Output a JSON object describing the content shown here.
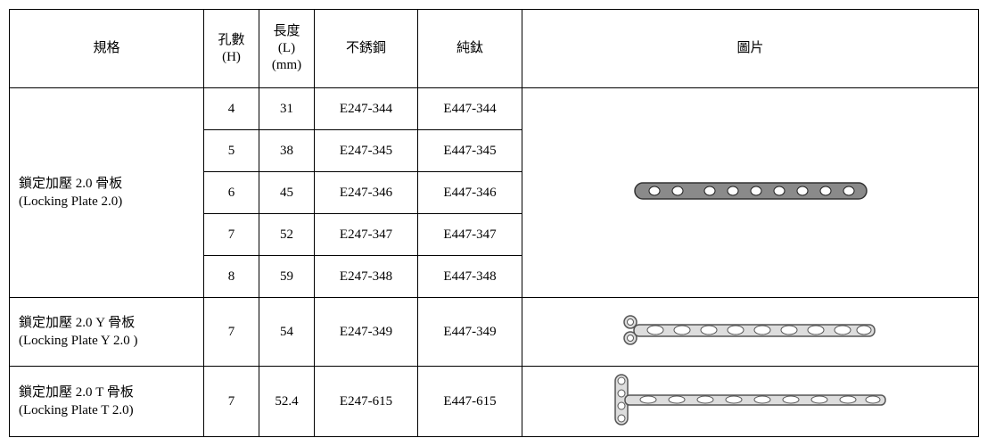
{
  "table": {
    "headers": [
      [
        "規格"
      ],
      [
        "孔數",
        "(H)"
      ],
      [
        "長度",
        "(L)",
        "(mm)"
      ],
      [
        "不銹鋼"
      ],
      [
        "純鈦"
      ],
      [
        "圖片"
      ]
    ],
    "groups": [
      {
        "spec": [
          "鎖定加壓 2.0 骨板",
          "(Locking Plate 2.0)"
        ],
        "rows": [
          [
            4,
            31,
            "E247-344",
            "E447-344"
          ],
          [
            5,
            38,
            "E247-345",
            "E447-345"
          ],
          [
            6,
            45,
            "E247-346",
            "E447-346"
          ],
          [
            7,
            52,
            "E247-347",
            "E447-347"
          ],
          [
            8,
            59,
            "E247-348",
            "E447-348"
          ]
        ]
      },
      {
        "spec": [
          "鎖定加壓 2.0 Y 骨板",
          "(Locking Plate Y 2.0 )"
        ],
        "rows": [
          [
            7,
            54,
            "E247-349",
            "E447-349"
          ]
        ]
      },
      {
        "spec": [
          "鎖定加壓 2.0 T 骨板",
          "(Locking Plate T 2.0)"
        ],
        "rows": [
          [
            7,
            52.4,
            "E247-615",
            "E447-615"
          ]
        ]
      }
    ]
  }
}
